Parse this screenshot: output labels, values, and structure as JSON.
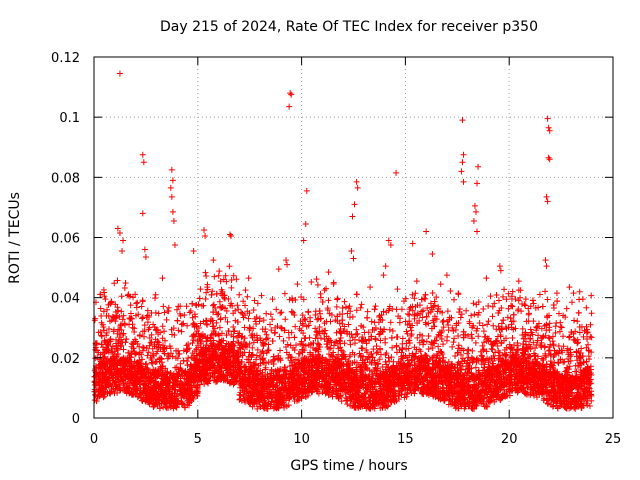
{
  "chart_data": {
    "type": "scatter",
    "title": "Day 215 of 2024, Rate Of TEC Index for receiver p350",
    "xlabel": "GPS time / hours",
    "ylabel": "ROTI / TECUs",
    "xlim": [
      0,
      25
    ],
    "ylim": [
      0,
      0.12
    ],
    "xticks": [
      0,
      5,
      10,
      15,
      20,
      25
    ],
    "yticks": [
      0,
      0.02,
      0.04,
      0.06,
      0.08,
      0.1,
      0.12
    ],
    "xtick_labels": [
      "0",
      "5",
      "10",
      "15",
      "20",
      "25"
    ],
    "ytick_labels": [
      "0",
      "0.02",
      "0.04",
      "0.06",
      "0.08",
      "0.1",
      "0.12"
    ],
    "grid": true,
    "marker": "+",
    "color": "#ff0000",
    "series": [
      {
        "name": "ROTI",
        "points": [
          [
            1.25,
            0.1145
          ],
          [
            9.45,
            0.108
          ],
          [
            9.5,
            0.1075
          ],
          [
            9.4,
            0.1035
          ],
          [
            17.75,
            0.099
          ],
          [
            21.85,
            0.0995
          ],
          [
            21.9,
            0.0965
          ],
          [
            21.95,
            0.0955
          ],
          [
            2.35,
            0.0875
          ],
          [
            2.4,
            0.085
          ],
          [
            21.9,
            0.0865
          ],
          [
            21.95,
            0.086
          ],
          [
            17.8,
            0.0875
          ],
          [
            17.75,
            0.085
          ],
          [
            18.5,
            0.0835
          ],
          [
            18.45,
            0.078
          ],
          [
            3.75,
            0.0825
          ],
          [
            3.8,
            0.079
          ],
          [
            3.7,
            0.0765
          ],
          [
            3.75,
            0.0735
          ],
          [
            14.55,
            0.0815
          ],
          [
            12.65,
            0.0785
          ],
          [
            12.7,
            0.0765
          ],
          [
            12.55,
            0.071
          ],
          [
            12.45,
            0.067
          ],
          [
            10.25,
            0.0755
          ],
          [
            17.7,
            0.082
          ],
          [
            17.8,
            0.0785
          ],
          [
            21.8,
            0.0735
          ],
          [
            21.85,
            0.072
          ],
          [
            18.35,
            0.0705
          ],
          [
            18.4,
            0.0685
          ],
          [
            18.3,
            0.0655
          ],
          [
            18.45,
            0.062
          ],
          [
            2.35,
            0.068
          ],
          [
            3.8,
            0.0685
          ],
          [
            3.85,
            0.0655
          ],
          [
            10.2,
            0.0645
          ],
          [
            1.15,
            0.063
          ],
          [
            1.25,
            0.0615
          ],
          [
            1.4,
            0.059
          ],
          [
            16.0,
            0.062
          ],
          [
            5.3,
            0.0625
          ],
          [
            5.35,
            0.0605
          ],
          [
            6.55,
            0.061
          ],
          [
            6.6,
            0.0605
          ],
          [
            10.1,
            0.059
          ],
          [
            14.2,
            0.059
          ],
          [
            14.3,
            0.0575
          ],
          [
            15.35,
            0.058
          ],
          [
            3.9,
            0.0575
          ],
          [
            2.45,
            0.056
          ],
          [
            12.4,
            0.0555
          ],
          [
            12.5,
            0.053
          ],
          [
            19.55,
            0.0505
          ],
          [
            19.6,
            0.049
          ],
          [
            21.75,
            0.0525
          ],
          [
            21.8,
            0.0505
          ],
          [
            9.25,
            0.0525
          ],
          [
            9.3,
            0.051
          ],
          [
            1.35,
            0.0555
          ],
          [
            11.3,
            0.0485
          ],
          [
            13.95,
            0.0475
          ],
          [
            14.05,
            0.0505
          ],
          [
            4.8,
            0.0555
          ],
          [
            5.75,
            0.0525
          ],
          [
            2.5,
            0.0535
          ],
          [
            8.9,
            0.0495
          ],
          [
            16.3,
            0.0545
          ],
          [
            17.0,
            0.0475
          ],
          [
            22.9,
            0.0435
          ],
          [
            23.1,
            0.0415
          ],
          [
            3.3,
            0.0465
          ],
          [
            6.1,
            0.0455
          ],
          [
            7.45,
            0.0465
          ],
          [
            7.3,
            0.0425
          ],
          [
            15.55,
            0.0455
          ],
          [
            20.8,
            0.0395
          ],
          [
            0.5,
            0.0405
          ],
          [
            0.55,
            0.0395
          ],
          [
            8.6,
            0.0395
          ],
          [
            9.8,
            0.0445
          ],
          [
            11.1,
            0.0425
          ],
          [
            13.3,
            0.0435
          ],
          [
            16.7,
            0.0445
          ],
          [
            18.9,
            0.0465
          ],
          [
            19.1,
            0.0405
          ],
          [
            20.3,
            0.0395
          ],
          [
            22.3,
            0.0415
          ],
          [
            23.55,
            0.0395
          ]
        ]
      }
    ]
  }
}
